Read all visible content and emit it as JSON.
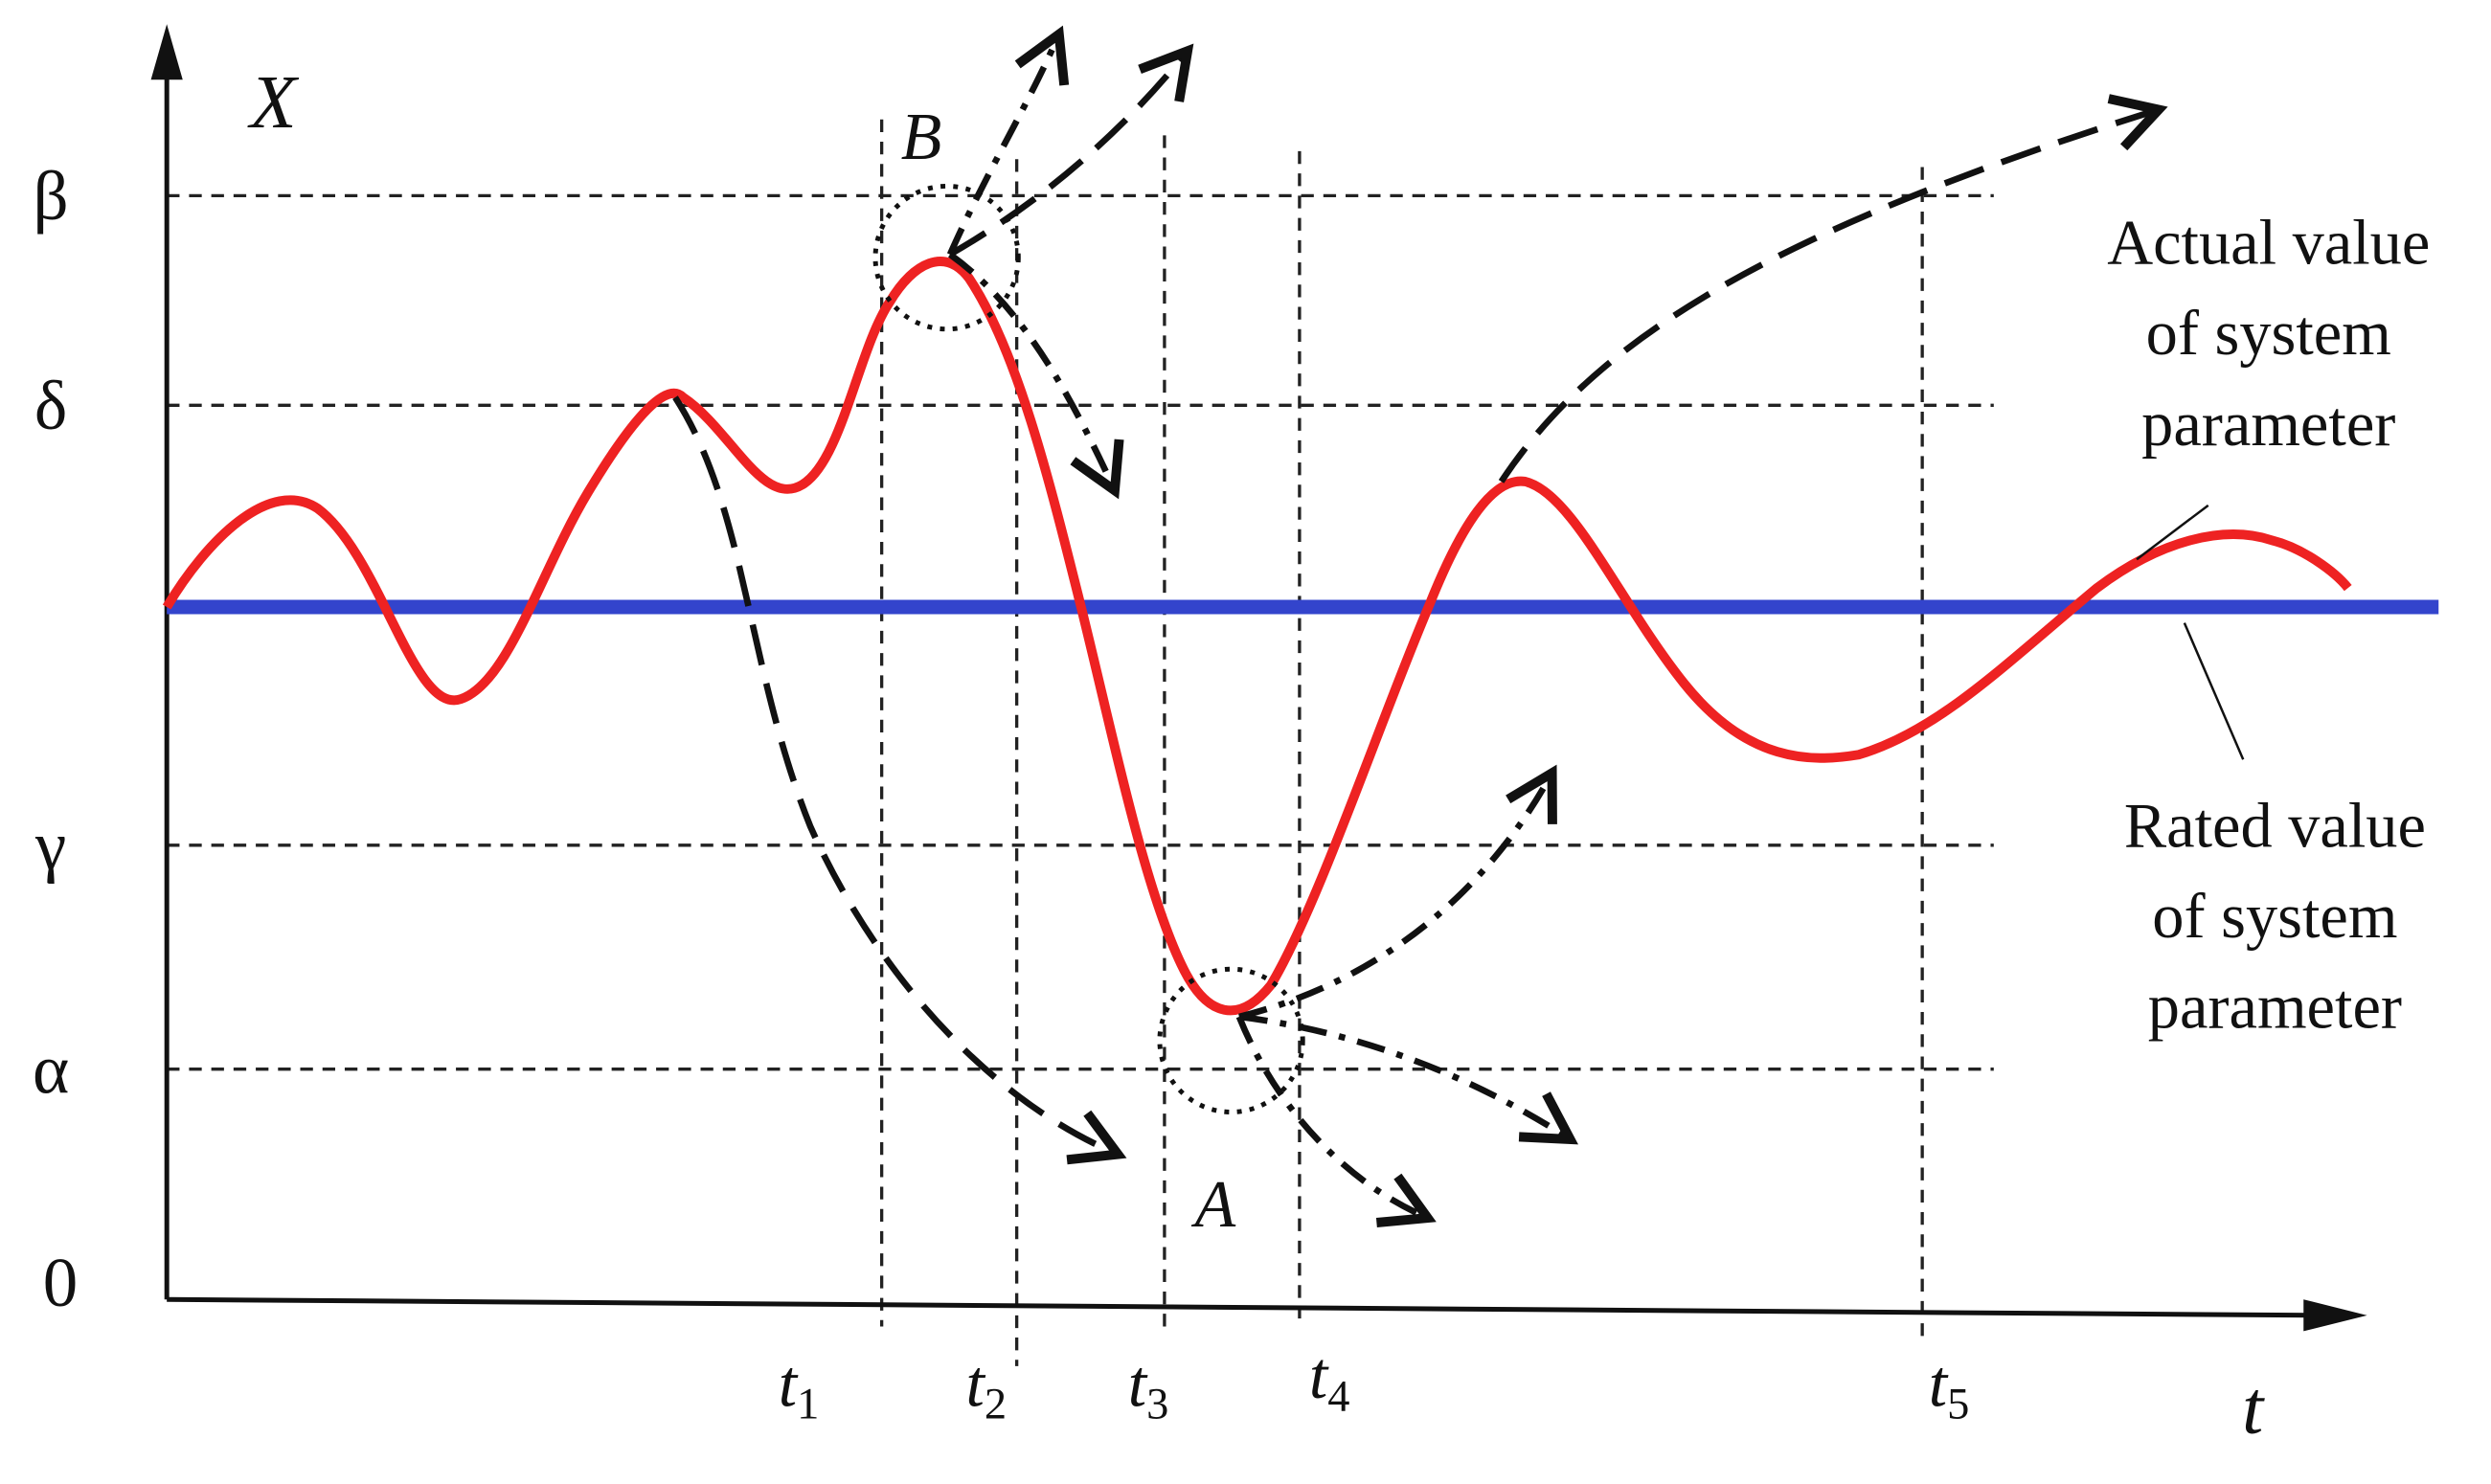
{
  "axes": {
    "y_label": "X",
    "x_label": "t",
    "origin": "0"
  },
  "levels": [
    {
      "label": "β"
    },
    {
      "label": "δ"
    },
    {
      "label": "γ"
    },
    {
      "label": "α"
    }
  ],
  "times": [
    {
      "base": "t",
      "sub": "1"
    },
    {
      "base": "t",
      "sub": "2"
    },
    {
      "base": "t",
      "sub": "3"
    },
    {
      "base": "t",
      "sub": "4"
    },
    {
      "base": "t",
      "sub": "5"
    }
  ],
  "points": [
    {
      "label": "B"
    },
    {
      "label": "A"
    }
  ],
  "annotations": [
    {
      "lines": [
        "Actual value",
        "of system",
        "parameter"
      ]
    },
    {
      "lines": [
        "Rated value",
        "of system",
        "parameter"
      ]
    }
  ]
}
